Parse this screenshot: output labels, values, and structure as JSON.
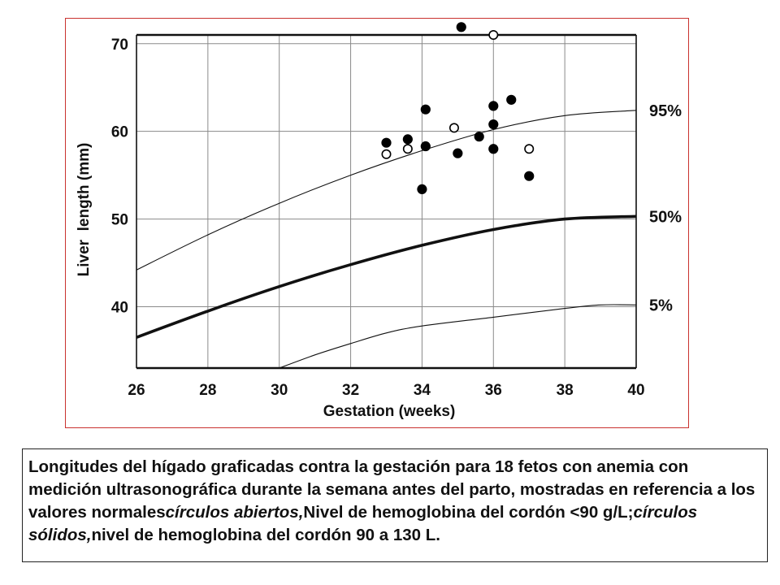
{
  "chart_data": {
    "type": "scatter",
    "xlabel": "Gestation (weeks)",
    "ylabel": "Liver  length (mm)",
    "x_ticks": [
      26,
      28,
      30,
      32,
      34,
      36,
      38,
      40
    ],
    "y_ticks": [
      40,
      50,
      60,
      70
    ],
    "xlim": [
      26,
      40
    ],
    "ylim": [
      33,
      71
    ],
    "grid": true,
    "reference_curves": [
      {
        "name": "95%",
        "points": [
          [
            26,
            44.2
          ],
          [
            28,
            48.2
          ],
          [
            30,
            51.8
          ],
          [
            32,
            55.0
          ],
          [
            34,
            57.8
          ],
          [
            36,
            60.2
          ],
          [
            38,
            61.8
          ],
          [
            40,
            62.4
          ]
        ]
      },
      {
        "name": "50%",
        "points": [
          [
            26,
            36.5
          ],
          [
            28,
            39.5
          ],
          [
            30,
            42.3
          ],
          [
            32,
            44.8
          ],
          [
            34,
            47.0
          ],
          [
            36,
            48.8
          ],
          [
            38,
            50.0
          ],
          [
            40,
            50.3
          ]
        ]
      },
      {
        "name": "5%",
        "points": [
          [
            30,
            33.0
          ],
          [
            31,
            34.5
          ],
          [
            32,
            35.8
          ],
          [
            33,
            37.0
          ],
          [
            34,
            37.8
          ],
          [
            36,
            38.8
          ],
          [
            38,
            39.8
          ],
          [
            39,
            40.2
          ],
          [
            40,
            40.2
          ]
        ]
      }
    ],
    "series": [
      {
        "marker": "open",
        "points": [
          [
            33.0,
            57.4
          ],
          [
            33.6,
            58.0
          ],
          [
            34.9,
            60.4
          ],
          [
            36.0,
            71.0
          ],
          [
            37.0,
            58.0
          ]
        ]
      },
      {
        "marker": "solid",
        "points": [
          [
            33.0,
            58.7
          ],
          [
            33.6,
            59.1
          ],
          [
            34.0,
            53.4
          ],
          [
            34.1,
            58.3
          ],
          [
            34.1,
            62.5
          ],
          [
            35.0,
            57.5
          ],
          [
            35.1,
            71.9
          ],
          [
            35.6,
            59.4
          ],
          [
            36.0,
            58.0
          ],
          [
            36.0,
            60.8
          ],
          [
            36.0,
            62.9
          ],
          [
            36.5,
            63.6
          ],
          [
            37.0,
            54.9
          ]
        ]
      }
    ]
  },
  "caption": {
    "part1": "Longitudes del hígado graficadas contra la gestación para 18 fetos con anemia con medición ultrasonográfica durante la semana antes del parto, mostradas en referencia a los valores normales",
    "part2": "círculos abiertos,",
    "part3": "Nivel de hemoglobina del cordón <90 g/L;",
    "part4": "círculos sólidos,",
    "part5": "nivel de hemoglobina del cordón 90 a 130 L."
  }
}
